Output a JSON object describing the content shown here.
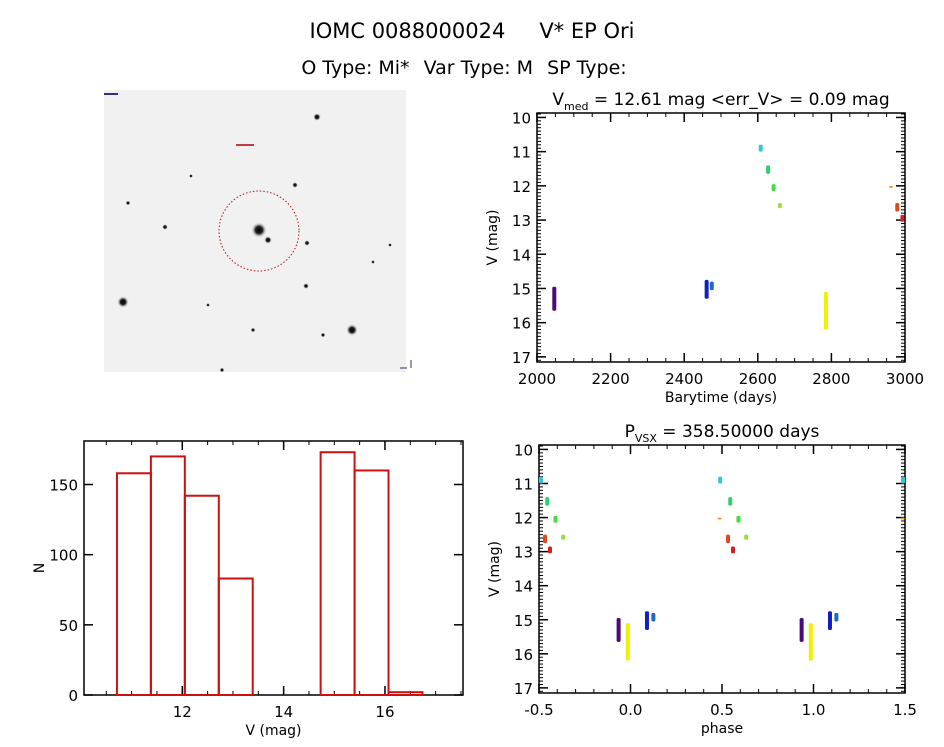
{
  "header": {
    "object_id": "IOMC 0088000024",
    "object_name": "V* EP Ori",
    "o_type": "O Type: Mi*",
    "var_type": "Var Type: M",
    "sp_type": "SP Type:"
  },
  "chart_data": [
    {
      "id": "light-curve",
      "type": "scatter",
      "title_symbol": "V",
      "title_subscript": "med",
      "title_rest": " = 12.61 mag <err_V> = 0.09 mag",
      "xlabel": "Barytime (days)",
      "ylabel": "V (mag)",
      "xlim": [
        2000,
        3000
      ],
      "ylim": [
        17.15,
        9.87
      ],
      "y_inverted": true,
      "xticks": [
        "2000",
        "2200",
        "2400",
        "2600",
        "2800",
        "3000"
      ],
      "yticks": [
        "10",
        "11",
        "12",
        "13",
        "14",
        "15",
        "16",
        "17"
      ],
      "clusters": [
        {
          "x": 2047,
          "vmin": 14.95,
          "vmax": 15.65,
          "color": "#4b0a7a"
        },
        {
          "x": 2461,
          "vmin": 14.75,
          "vmax": 15.3,
          "color": "#1020c0"
        },
        {
          "x": 2475,
          "vmin": 14.8,
          "vmax": 15.05,
          "color": "#2068c8"
        },
        {
          "x": 2608,
          "vmin": 10.8,
          "vmax": 11.0,
          "color": "#30c8d8"
        },
        {
          "x": 2628,
          "vmin": 11.4,
          "vmax": 11.65,
          "color": "#30d070"
        },
        {
          "x": 2643,
          "vmin": 11.95,
          "vmax": 12.15,
          "color": "#40e040"
        },
        {
          "x": 2660,
          "vmin": 12.5,
          "vmax": 12.65,
          "color": "#98e040"
        },
        {
          "x": 2785,
          "vmin": 15.1,
          "vmax": 16.2,
          "color": "#f0f000"
        },
        {
          "x": 2962,
          "vmin": 12.0,
          "vmax": 12.05,
          "color": "#e8a020"
        },
        {
          "x": 2979,
          "vmin": 12.5,
          "vmax": 12.75,
          "color": "#e04820"
        },
        {
          "x": 2993,
          "vmin": 12.85,
          "vmax": 13.05,
          "color": "#d02020"
        }
      ]
    },
    {
      "id": "histogram",
      "type": "bar",
      "xlabel": "V (mag)",
      "ylabel": "N",
      "xlim": [
        10.06,
        17.54
      ],
      "ylim": [
        0,
        181
      ],
      "xticks": [
        "12",
        "14",
        "16"
      ],
      "yticks": [
        "0",
        "50",
        "100",
        "150"
      ],
      "bin_edges": [
        10.71,
        11.38,
        12.05,
        12.72,
        13.39,
        14.06,
        14.73,
        15.4,
        16.07,
        16.74
      ],
      "values": [
        158,
        170,
        142,
        83,
        0,
        0,
        173,
        160,
        2
      ],
      "color": "#cc1010"
    },
    {
      "id": "phase-curve",
      "type": "scatter",
      "title_symbol": "P",
      "title_subscript": "VSX",
      "title_rest": " = 358.50000 days",
      "xlabel": "phase",
      "ylabel": "V (mag)",
      "xlim": [
        -0.5,
        1.5
      ],
      "ylim": [
        17.15,
        9.87
      ],
      "y_inverted": true,
      "xticks": [
        "-0.5",
        "0.0",
        "0.5",
        "1.0",
        "1.5"
      ],
      "yticks": [
        "10",
        "11",
        "12",
        "13",
        "14",
        "15",
        "16",
        "17"
      ],
      "clusters": [
        {
          "phase": 0.935,
          "vmin": 14.95,
          "vmax": 15.65,
          "color": "#4b0a7a"
        },
        {
          "phase": 0.09,
          "vmin": 14.75,
          "vmax": 15.3,
          "color": "#1020c0"
        },
        {
          "phase": 0.125,
          "vmin": 14.8,
          "vmax": 15.05,
          "color": "#2068c8"
        },
        {
          "phase": 0.49,
          "vmin": 10.8,
          "vmax": 11.0,
          "color": "#30c8d8"
        },
        {
          "phase": 0.545,
          "vmin": 11.4,
          "vmax": 11.65,
          "color": "#30d070"
        },
        {
          "phase": 0.59,
          "vmin": 11.95,
          "vmax": 12.15,
          "color": "#40e040"
        },
        {
          "phase": 0.632,
          "vmin": 12.5,
          "vmax": 12.65,
          "color": "#98e040"
        },
        {
          "phase": 0.985,
          "vmin": 15.1,
          "vmax": 16.2,
          "color": "#f0f000"
        },
        {
          "phase": 0.487,
          "vmin": 12.0,
          "vmax": 12.05,
          "color": "#e8a020"
        },
        {
          "phase": 0.533,
          "vmin": 12.5,
          "vmax": 12.75,
          "color": "#e04820"
        },
        {
          "phase": 0.56,
          "vmin": 12.85,
          "vmax": 13.05,
          "color": "#d02020"
        }
      ]
    }
  ],
  "finder_image": {
    "circle_color": "#b01010"
  }
}
